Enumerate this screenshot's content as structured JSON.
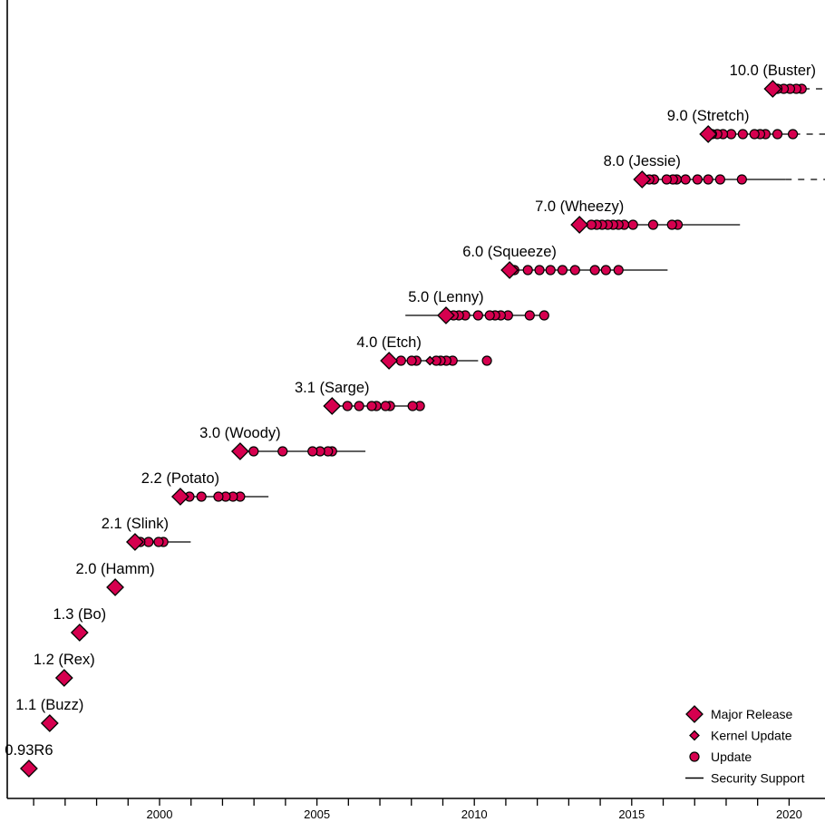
{
  "chart_data": {
    "type": "scatter",
    "title": "",
    "xlabel": "",
    "ylabel": "",
    "xlim": [
      1995.0,
      2021.0
    ],
    "x_ticks_major": [
      2000,
      2005,
      2010,
      2015,
      2020
    ],
    "x_ticks_minor": [
      1996,
      1997,
      1998,
      1999,
      2001,
      2002,
      2003,
      2004,
      2006,
      2007,
      2008,
      2009,
      2011,
      2012,
      2013,
      2014,
      2016,
      2017,
      2018,
      2019
    ],
    "x_tick_labels": [
      "2000",
      "2005",
      "2010",
      "2015",
      "2020"
    ],
    "grid": false,
    "legend_position": "bottom-right",
    "colors": {
      "marker_fill": "#d6004f",
      "marker_stroke": "#000000",
      "line": "#000000"
    },
    "legend": [
      {
        "symbol": "major-diamond",
        "label": "Major Release"
      },
      {
        "symbol": "small-diamond",
        "label": "Kernel Update"
      },
      {
        "symbol": "circle",
        "label": "Update"
      },
      {
        "symbol": "line",
        "label": "Security Support"
      }
    ],
    "releases": [
      {
        "name": "0.93R6",
        "release": 1995.85,
        "updates": [],
        "kernel_updates": [],
        "security": null,
        "ongoing": false
      },
      {
        "name": "1.1 (Buzz)",
        "release": 1996.51,
        "updates": [],
        "kernel_updates": [],
        "security": null,
        "ongoing": false
      },
      {
        "name": "1.2 (Rex)",
        "release": 1996.97,
        "updates": [],
        "kernel_updates": [],
        "security": null,
        "ongoing": false
      },
      {
        "name": "1.3 (Bo)",
        "release": 1997.46,
        "updates": [
          1997.52
        ],
        "kernel_updates": [],
        "security": null,
        "ongoing": false
      },
      {
        "name": "2.0 (Hamm)",
        "release": 1998.59,
        "updates": [],
        "kernel_updates": [],
        "security": null,
        "ongoing": false
      },
      {
        "name": "2.1 (Slink)",
        "release": 1999.22,
        "updates": [
          1999.39,
          1999.65,
          1999.97,
          2000.12
        ],
        "kernel_updates": [],
        "security": [
          1999.22,
          2000.99
        ],
        "ongoing": false
      },
      {
        "name": "2.2 (Potato)",
        "release": 2000.66,
        "updates": [
          2000.95,
          2001.33,
          2001.87,
          2002.1,
          2002.33,
          2002.56
        ],
        "kernel_updates": [],
        "security": [
          2000.66,
          2003.46
        ],
        "ongoing": false
      },
      {
        "name": "3.0 (Woody)",
        "release": 2002.56,
        "updates": [
          2002.99,
          2003.91,
          2004.86,
          2005.1,
          2005.35,
          2005.48
        ],
        "kernel_updates": [],
        "security": [
          2002.56,
          2006.54
        ],
        "ongoing": false
      },
      {
        "name": "3.1 (Sarge)",
        "release": 2005.48,
        "updates": [
          2005.97,
          2006.34,
          2006.74,
          2006.89,
          2007.18,
          2007.32,
          2008.04,
          2008.27
        ],
        "kernel_updates": [],
        "security": [
          2005.48,
          2008.3
        ],
        "ongoing": false
      },
      {
        "name": "4.0 (Etch)",
        "release": 2007.29,
        "updates": [
          2007.67,
          2008.01,
          2008.16,
          2008.79,
          2008.93,
          2009.11,
          2009.31,
          2010.4
        ],
        "kernel_updates": [
          2008.59
        ],
        "security": [
          2007.29,
          2010.12
        ],
        "ongoing": false
      },
      {
        "name": "5.0 (Lenny)",
        "release": 2009.1,
        "updates": [
          2009.34,
          2009.51,
          2009.71,
          2010.12,
          2010.49,
          2010.66,
          2010.84,
          2011.07,
          2011.76,
          2012.22
        ],
        "kernel_updates": [],
        "security": [
          2007.81,
          2012.22
        ],
        "ongoing": false
      },
      {
        "name": "6.0 (Squeeze)",
        "release": 2011.12,
        "updates": [
          2011.27,
          2011.7,
          2012.07,
          2012.42,
          2012.8,
          2013.2,
          2013.83,
          2014.18,
          2014.58
        ],
        "kernel_updates": [],
        "security": [
          2011.12,
          2016.14
        ],
        "ongoing": false
      },
      {
        "name": "7.0 (Wheezy)",
        "release": 2013.34,
        "updates": [
          2013.72,
          2013.89,
          2014.06,
          2014.24,
          2014.41,
          2014.58,
          2014.76,
          2015.04,
          2015.68,
          2016.28,
          2016.46
        ],
        "kernel_updates": [],
        "security": [
          2013.34,
          2018.44
        ],
        "ongoing": false
      },
      {
        "name": "8.0 (Jessie)",
        "release": 2015.33,
        "updates": [
          2015.56,
          2015.71,
          2016.11,
          2016.31,
          2016.43,
          2016.71,
          2017.09,
          2017.43,
          2017.81,
          2018.5
        ],
        "kernel_updates": [],
        "security": [
          2015.33,
          2019.88
        ],
        "ongoing": true
      },
      {
        "name": "9.0 (Stretch)",
        "release": 2017.43,
        "updates": [
          2017.55,
          2017.72,
          2017.9,
          2018.16,
          2018.53,
          2018.9,
          2019.08,
          2019.25,
          2019.63,
          2020.12
        ],
        "kernel_updates": [],
        "security": [
          2017.43,
          2020.15
        ],
        "ongoing": true
      },
      {
        "name": "10.0 (Buster)",
        "release": 2019.48,
        "updates": [
          2019.63,
          2019.83,
          2020.03,
          2020.23,
          2020.4
        ],
        "kernel_updates": [],
        "security": [
          2019.48,
          2020.45
        ],
        "ongoing": true
      }
    ]
  }
}
